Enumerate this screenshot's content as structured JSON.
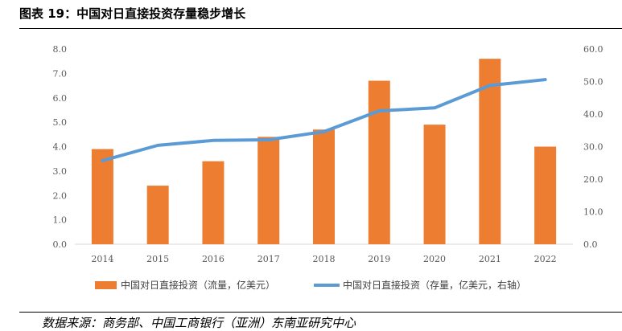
{
  "header": {
    "title": "图表 19：中国对日直接投资存量稳步增长"
  },
  "footer": {
    "source": "数据来源：商务部、中国工商银行（亚洲）东南亚研究中心"
  },
  "chart_data": {
    "type": "bar+line",
    "title": "中国对日直接投资存量稳步增长",
    "categories": [
      "2014",
      "2015",
      "2016",
      "2017",
      "2018",
      "2019",
      "2020",
      "2021",
      "2022"
    ],
    "series": [
      {
        "name": "中国对日直接投资（流量，亿美元）",
        "type": "bar",
        "axis": "left",
        "color": "#ED7D31",
        "values": [
          3.9,
          2.4,
          3.4,
          4.4,
          4.7,
          6.7,
          4.9,
          7.6,
          4.0
        ]
      },
      {
        "name": "中国对日直接投资（存量，亿美元，右轴）",
        "type": "line",
        "axis": "right",
        "color": "#5B9BD5",
        "values": [
          25.7,
          30.4,
          31.9,
          32.1,
          34.6,
          41.0,
          41.9,
          48.8,
          50.6
        ]
      }
    ],
    "y_left": {
      "ticks": [
        "0.0",
        "1.0",
        "2.0",
        "3.0",
        "4.0",
        "5.0",
        "6.0",
        "7.0",
        "8.0"
      ],
      "range": [
        0,
        8
      ]
    },
    "y_right": {
      "ticks": [
        "0.0",
        "10.0",
        "20.0",
        "30.0",
        "40.0",
        "50.0",
        "60.0"
      ],
      "range": [
        0,
        60
      ]
    },
    "grid": false,
    "legend_position": "bottom"
  }
}
